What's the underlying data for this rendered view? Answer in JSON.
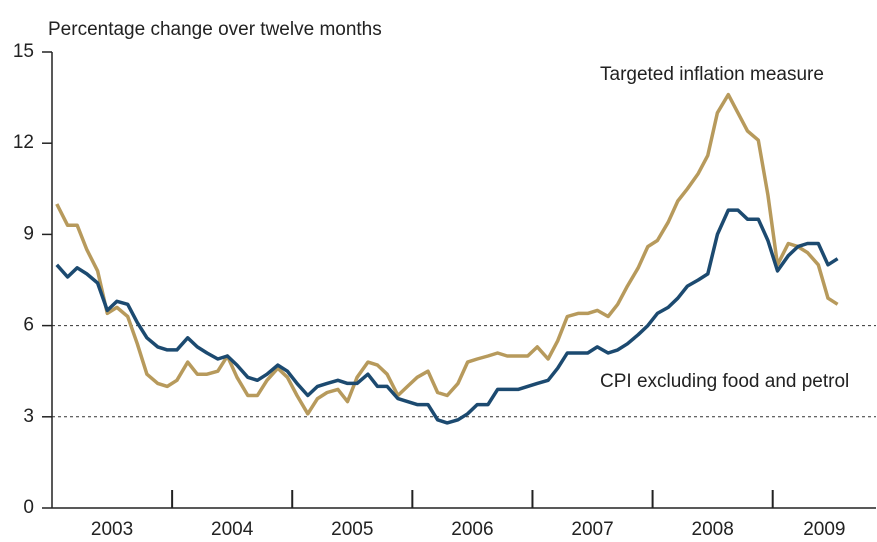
{
  "chart_data": {
    "type": "line",
    "y_axis_label": "Percentage change over twelve months",
    "x": [
      2003.04,
      2003.13,
      2003.21,
      2003.29,
      2003.38,
      2003.46,
      2003.54,
      2003.63,
      2003.71,
      2003.79,
      2003.88,
      2003.96,
      2004.04,
      2004.13,
      2004.21,
      2004.29,
      2004.38,
      2004.46,
      2004.54,
      2004.63,
      2004.71,
      2004.79,
      2004.88,
      2004.96,
      2005.04,
      2005.13,
      2005.21,
      2005.29,
      2005.38,
      2005.46,
      2005.54,
      2005.63,
      2005.71,
      2005.79,
      2005.88,
      2005.96,
      2006.04,
      2006.13,
      2006.21,
      2006.29,
      2006.38,
      2006.46,
      2006.54,
      2006.63,
      2006.71,
      2006.79,
      2006.88,
      2006.96,
      2007.04,
      2007.13,
      2007.21,
      2007.29,
      2007.38,
      2007.46,
      2007.54,
      2007.63,
      2007.71,
      2007.79,
      2007.88,
      2007.96,
      2008.04,
      2008.13,
      2008.21,
      2008.29,
      2008.38,
      2008.46,
      2008.54,
      2008.63,
      2008.71,
      2008.79,
      2008.88,
      2008.96,
      2009.04,
      2009.13,
      2009.21,
      2009.29,
      2009.38,
      2009.46,
      2009.54
    ],
    "series": [
      {
        "name": "Targeted inflation measure",
        "color": "#b79a5c",
        "values": [
          10.0,
          9.3,
          9.3,
          8.5,
          7.8,
          6.4,
          6.6,
          6.3,
          5.4,
          4.4,
          4.1,
          4.0,
          4.2,
          4.8,
          4.4,
          4.4,
          4.5,
          5.0,
          4.3,
          3.7,
          3.7,
          4.2,
          4.6,
          4.3,
          3.7,
          3.1,
          3.6,
          3.8,
          3.9,
          3.5,
          4.3,
          4.8,
          4.7,
          4.4,
          3.7,
          4.0,
          4.3,
          4.5,
          3.8,
          3.7,
          4.1,
          4.8,
          4.9,
          5.0,
          5.1,
          5.0,
          5.0,
          5.0,
          5.3,
          4.9,
          5.5,
          6.3,
          6.4,
          6.4,
          6.5,
          6.3,
          6.7,
          7.3,
          7.9,
          8.6,
          8.8,
          9.4,
          10.1,
          10.5,
          11.0,
          11.6,
          13.0,
          13.6,
          13.0,
          12.4,
          12.1,
          10.3,
          8.0,
          8.7,
          8.6,
          8.4,
          8.0,
          6.9,
          6.7
        ]
      },
      {
        "name": "CPI excluding food and petrol",
        "color": "#1c4a70",
        "values": [
          8.0,
          7.6,
          7.9,
          7.7,
          7.4,
          6.5,
          6.8,
          6.7,
          6.1,
          5.6,
          5.3,
          5.2,
          5.2,
          5.6,
          5.3,
          5.1,
          4.9,
          5.0,
          4.7,
          4.3,
          4.2,
          4.4,
          4.7,
          4.5,
          4.1,
          3.7,
          4.0,
          4.1,
          4.2,
          4.1,
          4.1,
          4.4,
          4.0,
          4.0,
          3.6,
          3.5,
          3.4,
          3.4,
          2.9,
          2.8,
          2.9,
          3.1,
          3.4,
          3.4,
          3.9,
          3.9,
          3.9,
          4.0,
          4.1,
          4.2,
          4.6,
          5.1,
          5.1,
          5.1,
          5.3,
          5.1,
          5.2,
          5.4,
          5.7,
          6.0,
          6.4,
          6.6,
          6.9,
          7.3,
          7.5,
          7.7,
          9.0,
          9.8,
          9.8,
          9.5,
          9.5,
          8.8,
          7.8,
          8.3,
          8.6,
          8.7,
          8.7,
          8.0,
          8.2
        ]
      }
    ],
    "year_labels": [
      "2003",
      "2004",
      "2005",
      "2006",
      "2007",
      "2008",
      "2009"
    ],
    "xlim": [
      2003,
      2009.86
    ],
    "xticks": [
      2004,
      2005,
      2006,
      2007,
      2008,
      2009
    ],
    "ylim": [
      0,
      15
    ],
    "yticks": [
      0,
      3,
      6,
      9,
      12,
      15
    ],
    "grid_lines": [
      3,
      6
    ]
  }
}
